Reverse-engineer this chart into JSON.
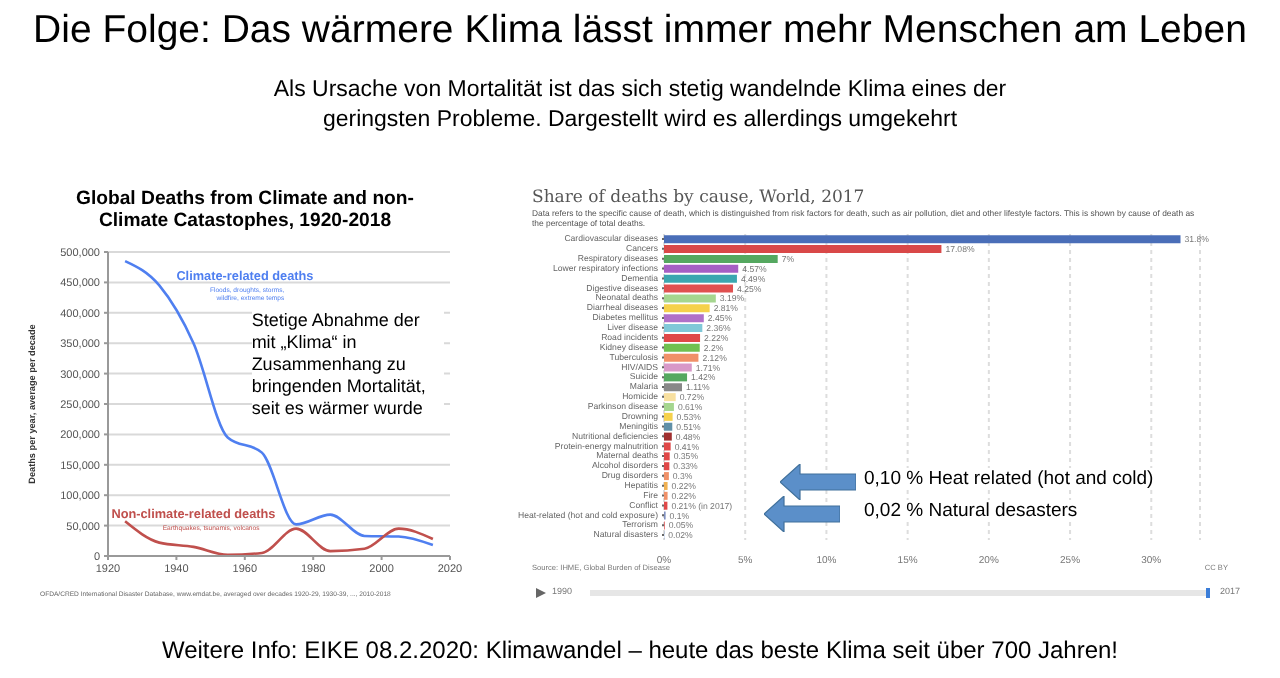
{
  "chart_data": [
    {
      "type": "other",
      "title": "Die Folge: Das wärmere Klima lässt immer mehr Menschen am Leben",
      "subtitle": "Als Ursache von Mortalität ist das sich stetig wandelnde Klima eines der geringsten Probleme. Dargestellt wird es allerdings umgekehrt",
      "annotations": [
        "Weitere Info: EIKE 08.2.2020: Klimawandel – heute das beste Klima seit über 700 Jahren!"
      ]
    },
    {
      "type": "line",
      "title": "Global Deaths from Climate and non-Climate Catastophes, 1920-2018",
      "ylabel": "Deaths per year, average per decade",
      "x": [
        1925,
        1935,
        1945,
        1955,
        1965,
        1975,
        1985,
        1995,
        2005,
        2015
      ],
      "series": [
        {
          "name": "Climate-related deaths",
          "color": "#4f7ff0",
          "values": [
            485000,
            445000,
            350000,
            195000,
            170000,
            52000,
            68000,
            33000,
            32000,
            18000
          ]
        },
        {
          "name": "Non-climate-related deaths",
          "color": "#c0504d",
          "values": [
            57000,
            22000,
            15000,
            2000,
            5000,
            45000,
            8000,
            12000,
            45000,
            28000
          ]
        }
      ],
      "xlim": [
        1920,
        2020
      ],
      "xticks": [
        1920,
        1940,
        1960,
        1980,
        2000,
        2020
      ],
      "ylim": [
        0,
        500000
      ],
      "yticks": [
        {
          "value": 0,
          "label": "0"
        },
        {
          "value": 50000,
          "label": "50,000"
        },
        {
          "value": 100000,
          "label": "100,000"
        },
        {
          "value": 150000,
          "label": "150,000"
        },
        {
          "value": 200000,
          "label": "200,000"
        },
        {
          "value": 250000,
          "label": "250,000"
        },
        {
          "value": 300000,
          "label": "300,000"
        },
        {
          "value": 350000,
          "label": "350,000"
        },
        {
          "value": 400000,
          "label": "400,000"
        },
        {
          "value": 450000,
          "label": "450,000"
        },
        {
          "value": 500000,
          "label": "500,000"
        }
      ],
      "grid": "y",
      "legend": false,
      "marker": "none",
      "line_style": "solid",
      "annotations": [
        "Floods, droughts, storms, wildfire, extreme temps",
        "Earthquakes, tsunamis, volcanos",
        "Stetige Abnahme der mit „Klima“ in Zusammenhang zu bringenden Mortalität, seit es wärmer wurde",
        "OFDA/CRED International Disaster Database, www.emdat.be, averaged over decades 1920-29, 1930-39, ..., 2010-2018"
      ]
    },
    {
      "type": "bar",
      "orientation": "horizontal",
      "title": "Share of deaths by cause, World, 2017",
      "subtitle": "Data refers to the specific cause of death, which is distinguished from risk factors for death, such as air pollution, diet and other lifestyle factors. This is shown by cause of death as the percentage of total deaths.",
      "categories": [
        "Cardiovascular diseases",
        "Cancers",
        "Respiratory diseases",
        "Lower respiratory infections",
        "Dementia",
        "Digestive diseases",
        "Neonatal deaths",
        "Diarrheal diseases",
        "Diabetes mellitus",
        "Liver disease",
        "Road incidents",
        "Kidney disease",
        "Tuberculosis",
        "HIV/AIDS",
        "Suicide",
        "Malaria",
        "Homicide",
        "Parkinson disease",
        "Drowning",
        "Meningitis",
        "Nutritional deficiencies",
        "Protein-energy malnutrition",
        "Maternal deaths",
        "Alcohol disorders",
        "Drug disorders",
        "Hepatitis",
        "Fire",
        "Conflict",
        "Heat-related (hot and cold exposure)",
        "Terrorism",
        "Natural disasters"
      ],
      "values": [
        31.8,
        17.08,
        7,
        4.57,
        4.49,
        4.25,
        3.19,
        2.81,
        2.45,
        2.36,
        2.22,
        2.2,
        2.12,
        1.71,
        1.42,
        1.11,
        0.72,
        0.61,
        0.53,
        0.51,
        0.48,
        0.41,
        0.35,
        0.33,
        0.3,
        0.22,
        0.22,
        0.21,
        0.1,
        0.05,
        0.02
      ],
      "value_labels": [
        "31.8%",
        "17.08%",
        "7%",
        "4.57%",
        "4.49%",
        "4.25%",
        "3.19%",
        "2.81%",
        "2.45%",
        "2.36%",
        "2.22%",
        "2.2%",
        "2.12%",
        "1.71%",
        "1.42%",
        "1.11%",
        "0.72%",
        "0.61%",
        "0.53%",
        "0.51%",
        "0.48%",
        "0.41%",
        "0.35%",
        "0.33%",
        "0.3%",
        "0.22%",
        "0.22%",
        "0.21% (in 2017)",
        "0.1%",
        "0.05%",
        "0.02%"
      ],
      "colors": [
        "#4a6eb8",
        "#d94848",
        "#55a860",
        "#a65fc4",
        "#3ba7b0",
        "#e05050",
        "#a5d68f",
        "#f5d14b",
        "#b070c8",
        "#80c8d8",
        "#e04848",
        "#70c050",
        "#f09068",
        "#d898c8",
        "#55a860",
        "#888888",
        "#f8e0a0",
        "#a5d68f",
        "#f5d14b",
        "#6090a8",
        "#a03030",
        "#e04848",
        "#e04848",
        "#e04848",
        "#f09068",
        "#f0b050",
        "#f09068",
        "#e04848",
        "#8090c0",
        "#e06060",
        "#80a0d0"
      ],
      "xlim": [
        0,
        33
      ],
      "xticks": [
        {
          "value": 0,
          "label": "0%"
        },
        {
          "value": 5,
          "label": "5%"
        },
        {
          "value": 10,
          "label": "10%"
        },
        {
          "value": 15,
          "label": "15%"
        },
        {
          "value": 20,
          "label": "20%"
        },
        {
          "value": 25,
          "label": "25%"
        },
        {
          "value": 30,
          "label": "30%"
        }
      ],
      "grid": "x",
      "legend": false,
      "annotations": [
        "0,10 % Heat related (hot and cold)",
        "0,02 % Natural desasters",
        "Source: IHME, Global Burden of Disease",
        "CC BY",
        "1990",
        "2017"
      ]
    }
  ]
}
